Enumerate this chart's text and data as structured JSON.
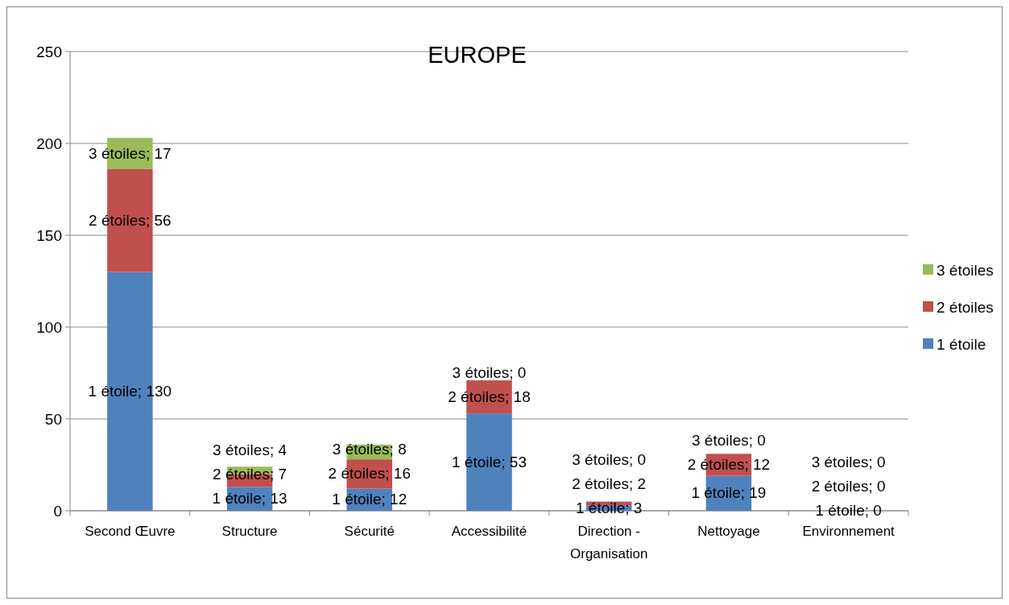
{
  "chart_data": {
    "type": "bar",
    "stacked": true,
    "title": "EUROPE",
    "categories": [
      "Second Œuvre",
      "Structure",
      "Sécurité",
      "Accessibilité",
      "Direction - Organisation",
      "Nettoyage",
      "Environnement"
    ],
    "series": [
      {
        "name": "1 étoile",
        "color": "#4f81bd",
        "values": [
          130,
          13,
          12,
          53,
          3,
          19,
          0
        ],
        "value_labels": [
          "1 étoile; 130",
          "1 étoile; 13",
          "1 étoile; 12",
          "1 étoile; 53",
          "1 étoile; 3",
          "1 étoile; 19",
          "1 étoile; 0"
        ]
      },
      {
        "name": "2 étoiles",
        "color": "#c0504d",
        "values": [
          56,
          7,
          16,
          18,
          2,
          12,
          0
        ],
        "value_labels": [
          "2 étoiles; 56",
          "2 étoiles; 7",
          "2 étoiles; 16",
          "2 étoiles; 18",
          "2 étoiles; 2",
          "2 étoiles; 12",
          "2 étoiles; 0"
        ]
      },
      {
        "name": "3 étoiles",
        "color": "#9bbb59",
        "values": [
          17,
          4,
          8,
          0,
          0,
          0,
          0
        ],
        "value_labels": [
          "3 étoiles; 17",
          "3 étoiles; 4",
          "3 étoiles; 8",
          "3 étoiles; 0",
          "3 étoiles; 0",
          "3 étoiles; 0",
          "3 étoiles; 0"
        ]
      }
    ],
    "ylim": [
      0,
      250
    ],
    "yticks": [
      0,
      50,
      100,
      150,
      200,
      250
    ],
    "grid": "y",
    "legend": "right"
  }
}
